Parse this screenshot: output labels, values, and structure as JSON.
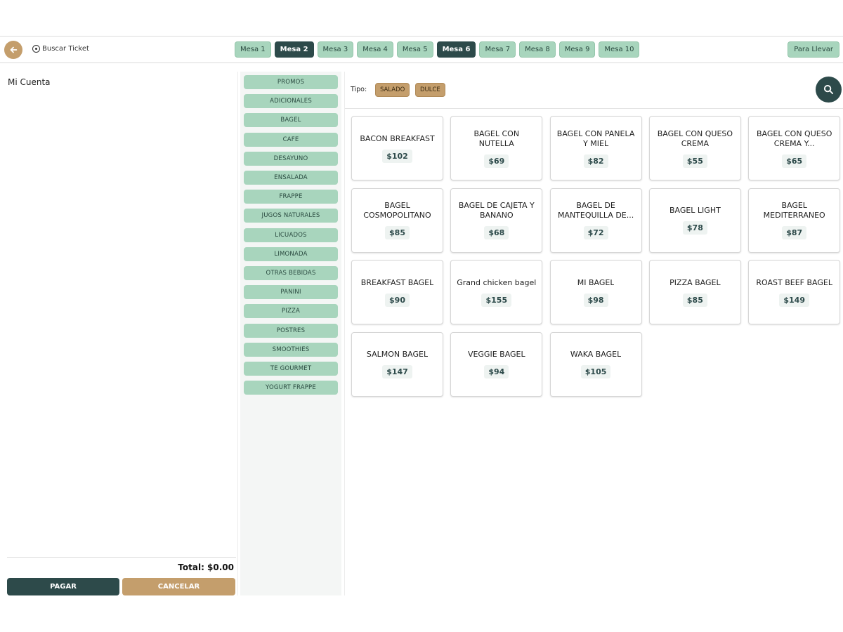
{
  "topbar": {
    "buscar_label": "Buscar Ticket",
    "mesas": [
      {
        "label": "Mesa 1",
        "active": false
      },
      {
        "label": "Mesa 2",
        "active": true
      },
      {
        "label": "Mesa 3",
        "active": false
      },
      {
        "label": "Mesa 4",
        "active": false
      },
      {
        "label": "Mesa 5",
        "active": false
      },
      {
        "label": "Mesa 6",
        "active": true
      },
      {
        "label": "Mesa 7",
        "active": false
      },
      {
        "label": "Mesa 8",
        "active": false
      },
      {
        "label": "Mesa 9",
        "active": false
      },
      {
        "label": "Mesa 10",
        "active": false
      }
    ],
    "para_llevar": "Para Llevar"
  },
  "cuenta": {
    "title": "Mi Cuenta",
    "total": "Total: $0.00",
    "pagar": "PAGAR",
    "cancelar": "CANCELAR"
  },
  "categories": [
    "PROMOS",
    "ADICIONALES",
    "BAGEL",
    "CAFE",
    "DESAYUNO",
    "ENSALADA",
    "FRAPPE",
    "JUGOS NATURALES",
    "LICUADOS",
    "LIMONADA",
    "OTRAS BEBIDAS",
    "PANINI",
    "PIZZA",
    "POSTRES",
    "SMOOTHIES",
    "TE GOURMET",
    "YOGURT FRAPPE"
  ],
  "filter": {
    "label": "Tipo:",
    "options": [
      "SALADO",
      "DULCE"
    ]
  },
  "products": [
    {
      "name": "BACON BREAKFAST",
      "price": "$102"
    },
    {
      "name": "BAGEL CON NUTELLA",
      "price": "$69"
    },
    {
      "name": "BAGEL CON PANELA Y MIEL",
      "price": "$82"
    },
    {
      "name": "BAGEL CON QUESO CREMA",
      "price": "$55"
    },
    {
      "name": "BAGEL CON QUESO CREMA Y...",
      "price": "$65"
    },
    {
      "name": "BAGEL COSMOPOLITANO",
      "price": "$85"
    },
    {
      "name": "BAGEL DE CAJETA Y BANANO",
      "price": "$68"
    },
    {
      "name": "BAGEL DE MANTEQUILLA DE...",
      "price": "$72"
    },
    {
      "name": "BAGEL LIGHT",
      "price": "$78"
    },
    {
      "name": "BAGEL MEDITERRANEO",
      "price": "$87"
    },
    {
      "name": "BREAKFAST BAGEL",
      "price": "$90"
    },
    {
      "name": "Grand chicken bagel",
      "price": "$155"
    },
    {
      "name": "MI BAGEL",
      "price": "$98"
    },
    {
      "name": "PIZZA BAGEL",
      "price": "$85"
    },
    {
      "name": "ROAST BEEF BAGEL",
      "price": "$149"
    },
    {
      "name": "SALMON BAGEL",
      "price": "$147"
    },
    {
      "name": "VEGGIE BAGEL",
      "price": "$94"
    },
    {
      "name": "WAKA BAGEL",
      "price": "$105"
    }
  ]
}
